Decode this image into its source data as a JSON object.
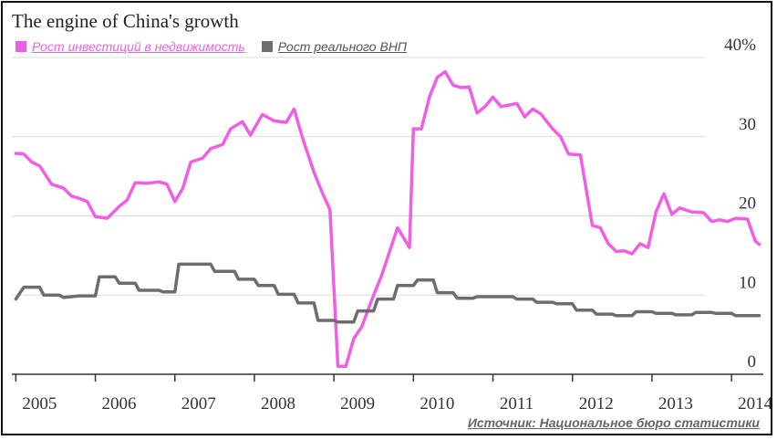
{
  "colors": {
    "investment": "#ef5fe4",
    "gdp": "#6d6d6d",
    "grid": "#dcdcdc",
    "axis_text": "#333333"
  },
  "chart_data": {
    "type": "line",
    "title": "The engine of China's growth",
    "source": "Источник: Национальное бюро статистики",
    "y_ticks": [
      "0",
      "10",
      "20",
      "30",
      "40%"
    ],
    "ylim": [
      0,
      40
    ],
    "xlim": [
      2004.95,
      2014.4
    ],
    "x_ticks": [
      "2005",
      "2006",
      "2007",
      "2008",
      "2009",
      "2010",
      "2011",
      "2012",
      "2013",
      "2014"
    ],
    "grid": true,
    "y_axis_position": "right",
    "legend_position": "top-left",
    "series": [
      {
        "name": "Рост инвестиций в недвижимость",
        "color_key": "investment",
        "points": [
          [
            2005.0,
            27.9
          ],
          [
            2005.1,
            27.8
          ],
          [
            2005.2,
            26.8
          ],
          [
            2005.3,
            26.3
          ],
          [
            2005.45,
            24.0
          ],
          [
            2005.6,
            23.5
          ],
          [
            2005.7,
            22.5
          ],
          [
            2005.8,
            22.2
          ],
          [
            2005.9,
            21.8
          ],
          [
            2006.0,
            19.9
          ],
          [
            2006.15,
            19.7
          ],
          [
            2006.3,
            21.2
          ],
          [
            2006.4,
            22.0
          ],
          [
            2006.5,
            24.2
          ],
          [
            2006.65,
            24.1
          ],
          [
            2006.8,
            24.3
          ],
          [
            2006.9,
            24.0
          ],
          [
            2007.0,
            21.8
          ],
          [
            2007.1,
            23.5
          ],
          [
            2007.2,
            26.8
          ],
          [
            2007.35,
            27.3
          ],
          [
            2007.45,
            28.5
          ],
          [
            2007.6,
            29.0
          ],
          [
            2007.7,
            31.0
          ],
          [
            2007.85,
            31.9
          ],
          [
            2007.95,
            30.2
          ],
          [
            2008.1,
            32.8
          ],
          [
            2008.25,
            32.0
          ],
          [
            2008.4,
            31.8
          ],
          [
            2008.5,
            33.5
          ],
          [
            2008.6,
            30.0
          ],
          [
            2008.75,
            25.5
          ],
          [
            2008.85,
            23.0
          ],
          [
            2008.95,
            20.8
          ],
          [
            2009.05,
            1.0
          ],
          [
            2009.15,
            1.0
          ],
          [
            2009.25,
            4.5
          ],
          [
            2009.35,
            6.0
          ],
          [
            2009.5,
            10.0
          ],
          [
            2009.6,
            12.5
          ],
          [
            2009.8,
            18.5
          ],
          [
            2009.95,
            16.0
          ],
          [
            2010.0,
            31.0
          ],
          [
            2010.1,
            31.0
          ],
          [
            2010.2,
            35.0
          ],
          [
            2010.3,
            37.5
          ],
          [
            2010.4,
            38.2
          ],
          [
            2010.5,
            36.5
          ],
          [
            2010.6,
            36.2
          ],
          [
            2010.7,
            36.3
          ],
          [
            2010.8,
            33.0
          ],
          [
            2010.9,
            33.8
          ],
          [
            2011.0,
            35.0
          ],
          [
            2011.1,
            33.8
          ],
          [
            2011.2,
            34.0
          ],
          [
            2011.3,
            34.2
          ],
          [
            2011.4,
            32.5
          ],
          [
            2011.5,
            33.5
          ],
          [
            2011.6,
            32.9
          ],
          [
            2011.75,
            31.0
          ],
          [
            2011.85,
            30.0
          ],
          [
            2011.95,
            27.8
          ],
          [
            2012.1,
            27.7
          ],
          [
            2012.25,
            18.8
          ],
          [
            2012.35,
            18.5
          ],
          [
            2012.45,
            16.5
          ],
          [
            2012.55,
            15.5
          ],
          [
            2012.65,
            15.6
          ],
          [
            2012.75,
            15.2
          ],
          [
            2012.85,
            16.5
          ],
          [
            2012.95,
            16.0
          ],
          [
            2013.05,
            20.5
          ],
          [
            2013.15,
            22.8
          ],
          [
            2013.25,
            20.2
          ],
          [
            2013.35,
            21.0
          ],
          [
            2013.5,
            20.5
          ],
          [
            2013.65,
            20.4
          ],
          [
            2013.75,
            19.3
          ],
          [
            2013.85,
            19.5
          ],
          [
            2013.95,
            19.3
          ],
          [
            2014.05,
            19.7
          ],
          [
            2014.2,
            19.6
          ],
          [
            2014.3,
            16.8
          ],
          [
            2014.35,
            16.4
          ]
        ]
      },
      {
        "name": "Рост реального ВНП",
        "color_key": "gdp",
        "points": [
          [
            2005.0,
            9.5
          ],
          [
            2005.1,
            11.0
          ],
          [
            2005.3,
            11.0
          ],
          [
            2005.35,
            10.0
          ],
          [
            2005.55,
            10.0
          ],
          [
            2005.6,
            9.7
          ],
          [
            2005.8,
            9.9
          ],
          [
            2006.0,
            9.9
          ],
          [
            2006.05,
            12.3
          ],
          [
            2006.25,
            12.3
          ],
          [
            2006.3,
            11.5
          ],
          [
            2006.5,
            11.5
          ],
          [
            2006.55,
            10.6
          ],
          [
            2006.8,
            10.6
          ],
          [
            2006.85,
            10.4
          ],
          [
            2007.0,
            10.4
          ],
          [
            2007.05,
            13.9
          ],
          [
            2007.45,
            13.9
          ],
          [
            2007.5,
            13.0
          ],
          [
            2007.75,
            13.0
          ],
          [
            2007.8,
            12.0
          ],
          [
            2008.0,
            12.0
          ],
          [
            2008.05,
            11.2
          ],
          [
            2008.25,
            11.2
          ],
          [
            2008.3,
            10.1
          ],
          [
            2008.5,
            10.1
          ],
          [
            2008.55,
            9.0
          ],
          [
            2008.75,
            9.0
          ],
          [
            2008.8,
            6.8
          ],
          [
            2009.0,
            6.8
          ],
          [
            2009.05,
            6.6
          ],
          [
            2009.25,
            6.6
          ],
          [
            2009.3,
            8.0
          ],
          [
            2009.5,
            8.0
          ],
          [
            2009.55,
            9.5
          ],
          [
            2009.75,
            9.5
          ],
          [
            2009.8,
            11.2
          ],
          [
            2010.0,
            11.2
          ],
          [
            2010.05,
            11.9
          ],
          [
            2010.25,
            11.9
          ],
          [
            2010.3,
            10.3
          ],
          [
            2010.5,
            10.3
          ],
          [
            2010.55,
            9.6
          ],
          [
            2010.75,
            9.6
          ],
          [
            2010.8,
            9.8
          ],
          [
            2011.25,
            9.8
          ],
          [
            2011.3,
            9.5
          ],
          [
            2011.5,
            9.5
          ],
          [
            2011.55,
            9.1
          ],
          [
            2011.75,
            9.1
          ],
          [
            2011.8,
            8.9
          ],
          [
            2012.0,
            8.9
          ],
          [
            2012.05,
            8.1
          ],
          [
            2012.25,
            8.1
          ],
          [
            2012.3,
            7.6
          ],
          [
            2012.5,
            7.6
          ],
          [
            2012.55,
            7.4
          ],
          [
            2012.75,
            7.4
          ],
          [
            2012.8,
            7.9
          ],
          [
            2013.0,
            7.9
          ],
          [
            2013.05,
            7.7
          ],
          [
            2013.25,
            7.7
          ],
          [
            2013.3,
            7.5
          ],
          [
            2013.5,
            7.5
          ],
          [
            2013.55,
            7.8
          ],
          [
            2013.75,
            7.8
          ],
          [
            2013.8,
            7.7
          ],
          [
            2014.0,
            7.7
          ],
          [
            2014.05,
            7.4
          ],
          [
            2014.35,
            7.4
          ]
        ]
      }
    ]
  }
}
